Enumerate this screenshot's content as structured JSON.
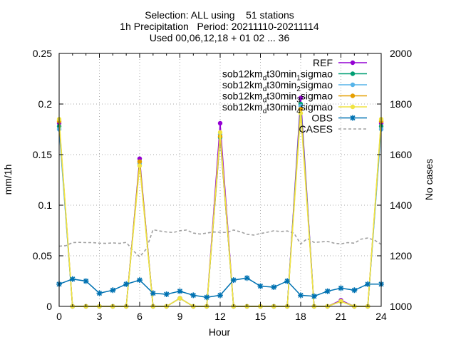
{
  "chart_data": {
    "type": "line",
    "title_lines": [
      "Selection: ALL using    51 stations",
      "1h Precipitation   Period: 20211110-20211114",
      "Used 00,06,12,18 + 01 02 ... 36"
    ],
    "xlabel": "Hour",
    "ylabel": "mm/1h",
    "y2label": "No cases",
    "xlim": [
      0,
      24
    ],
    "ylim": [
      0,
      0.25
    ],
    "y2lim": [
      1000,
      2000
    ],
    "xticks": [
      "0",
      "3",
      "6",
      "9",
      "12",
      "15",
      "18",
      "21",
      "24"
    ],
    "yticks": [
      "0",
      "0.05",
      "0.1",
      "0.15",
      "0.2",
      "0.25"
    ],
    "y2ticks": [
      "1000",
      "1200",
      "1400",
      "1600",
      "1800",
      "2000"
    ],
    "grid": true,
    "legend_position": "top-right",
    "x": [
      0,
      1,
      2,
      3,
      4,
      5,
      6,
      7,
      8,
      9,
      10,
      11,
      12,
      13,
      14,
      15,
      16,
      17,
      18,
      19,
      20,
      21,
      22,
      23,
      24
    ],
    "series": [
      {
        "name": "REF",
        "color": "#9400d3",
        "marker": "circle-filled",
        "values": [
          0.181,
          0,
          0,
          0,
          0,
          0,
          0.146,
          0,
          0,
          0.008,
          0,
          0,
          0.181,
          0,
          0,
          0,
          0,
          0,
          0.206,
          0,
          0,
          0.006,
          0,
          0,
          0.181
        ]
      },
      {
        "name": "sob12km_dt30min_1sigmao",
        "color": "#009e73",
        "marker": "circle-filled",
        "values": [
          0.178,
          0,
          0,
          0,
          0,
          0,
          0.143,
          0,
          0,
          0.008,
          0,
          0,
          0.167,
          0,
          0,
          0,
          0,
          0,
          0.2,
          0,
          0,
          0.005,
          0,
          0,
          0.178
        ]
      },
      {
        "name": "sob12km_dt30min_2sigmao",
        "color": "#56b4e9",
        "marker": "circle-filled",
        "values": [
          0.175,
          0,
          0,
          0,
          0,
          0,
          0.141,
          0,
          0,
          0.008,
          0,
          0,
          0.17,
          0,
          0,
          0,
          0,
          0,
          0.198,
          0,
          0,
          0.005,
          0,
          0,
          0.175
        ]
      },
      {
        "name": "sob12km_dt30min_3sigmao",
        "color": "#e69f00",
        "marker": "circle-filled",
        "values": [
          0.183,
          0,
          0,
          0,
          0,
          0,
          0.143,
          0,
          0,
          0.008,
          0,
          0,
          0.168,
          0,
          0,
          0,
          0,
          0,
          0.195,
          0,
          0,
          0.005,
          0,
          0,
          0.183
        ]
      },
      {
        "name": "sob12km_dt30min_4sigmao",
        "color": "#f0e442",
        "marker": "circle-filled",
        "values": [
          0.185,
          0,
          0,
          0,
          0,
          0,
          0.139,
          0,
          0,
          0.008,
          0,
          0,
          0.172,
          0,
          0,
          0,
          0,
          0,
          0.191,
          0,
          0,
          0.005,
          0,
          0,
          0.185
        ]
      },
      {
        "name": "OBS",
        "color": "#0072b2",
        "marker": "star",
        "values": [
          0.022,
          0.027,
          0.025,
          0.013,
          0.016,
          0.022,
          0.026,
          0.013,
          0.012,
          0.015,
          0.011,
          0.009,
          0.011,
          0.026,
          0.028,
          0.02,
          0.019,
          0.025,
          0.011,
          0.01,
          0.015,
          0.018,
          0.016,
          0.022,
          0.022
        ]
      }
    ],
    "cases": {
      "name": "CASES",
      "color": "#a0a0a0",
      "axis": "y2",
      "x": [
        0,
        0.5,
        1,
        1.5,
        2,
        2.5,
        3,
        3.5,
        4,
        4.5,
        5,
        5.5,
        6,
        6.5,
        7,
        7.5,
        8,
        8.5,
        9,
        9.5,
        10,
        10.5,
        11,
        11.5,
        12,
        12.5,
        13,
        13.5,
        14,
        14.5,
        15,
        15.5,
        16,
        16.5,
        17,
        17.5,
        18,
        18.5,
        19,
        19.5,
        20,
        20.5,
        21,
        21.5,
        22,
        22.5,
        23,
        23.5,
        24
      ],
      "values": [
        1238,
        1240,
        1252,
        1253,
        1252,
        1252,
        1250,
        1249,
        1251,
        1249,
        1253,
        1221,
        1196,
        1227,
        1303,
        1298,
        1294,
        1292,
        1299,
        1302,
        1290,
        1286,
        1290,
        1294,
        1293,
        1292,
        1302,
        1295,
        1285,
        1282,
        1288,
        1293,
        1299,
        1296,
        1298,
        1289,
        1247,
        1268,
        1253,
        1255,
        1257,
        1250,
        1247,
        1252,
        1250,
        1266,
        1270,
        1262,
        1245
      ]
    }
  }
}
